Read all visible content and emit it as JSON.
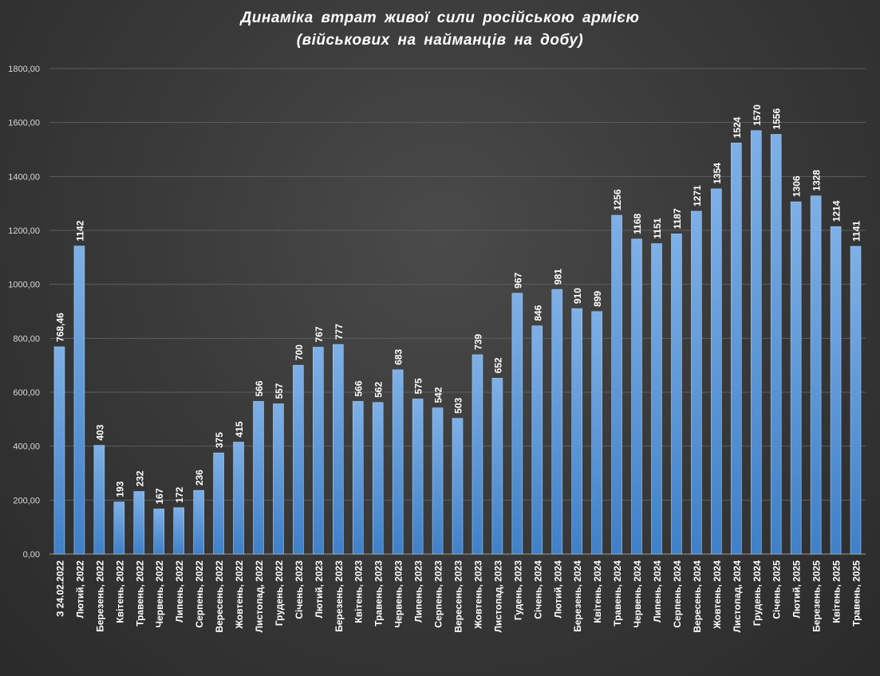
{
  "chart_data": {
    "type": "bar",
    "title_line1": "Динаміка  втрат живої  сили російською  армією",
    "title_line2": "(військових  на найманців  на добу)",
    "xlabel": "",
    "ylabel": "",
    "ylim": [
      0,
      1800
    ],
    "yticks": [
      "0,00",
      "200,00",
      "400,00",
      "600,00",
      "800,00",
      "1000,00",
      "1200,00",
      "1400,00",
      "1600,00",
      "1800,00"
    ],
    "grid": true,
    "bar_color": "#5b9bd5",
    "categories": [
      "З 24.02.2022",
      "Лютий, 2022",
      "Березень, 2022",
      "Квітень, 2022",
      "Травень, 2022",
      "Червень, 2022",
      "Липень, 2022",
      "Серпень, 2022",
      "Вересень, 2022",
      "Жовтень, 2022",
      "Листопад, 2022",
      "Грудень, 2022",
      "Січень, 2023",
      "Лютий, 2023",
      "Березень, 2023",
      "Квітень, 2023",
      "Травень, 2023",
      "Червень, 2023",
      "Липень, 2023",
      "Серпень, 2023",
      "Вересень, 2023",
      "Жовтень, 2023",
      "Листопад, 2023",
      "Гудень, 2023",
      "Січень, 2024",
      "Лютий, 2024",
      "Березень, 2024",
      "Квітень, 2024",
      "Травень, 2024",
      "Червень, 2024",
      "Липень, 2024",
      "Серпень, 2024",
      "Вересень, 2024",
      "Жовтень, 2024",
      "Листопад, 2024",
      "Грудень, 2024",
      "Січень, 2025",
      "Лютий, 2025",
      "Березень, 2025",
      "Квітень, 2025",
      "Травень, 2025"
    ],
    "values": [
      768.46,
      1142,
      403,
      193,
      232,
      167,
      172,
      236,
      375,
      415,
      566,
      557,
      700,
      767,
      777,
      566,
      562,
      683,
      575,
      542,
      503,
      739,
      652,
      967,
      846,
      981,
      910,
      899,
      1256,
      1168,
      1151,
      1187,
      1271,
      1354,
      1524,
      1570,
      1556,
      1306,
      1328,
      1214,
      1141
    ],
    "value_labels": [
      "768,46",
      "1142",
      "403",
      "193",
      "232",
      "167",
      "172",
      "236",
      "375",
      "415",
      "566",
      "557",
      "700",
      "767",
      "777",
      "566",
      "562",
      "683",
      "575",
      "542",
      "503",
      "739",
      "652",
      "967",
      "846",
      "981",
      "910",
      "899",
      "1256",
      "1168",
      "1151",
      "1187",
      "1271",
      "1354",
      "1524",
      "1570",
      "1556",
      "1306",
      "1328",
      "1214",
      "1141"
    ]
  }
}
